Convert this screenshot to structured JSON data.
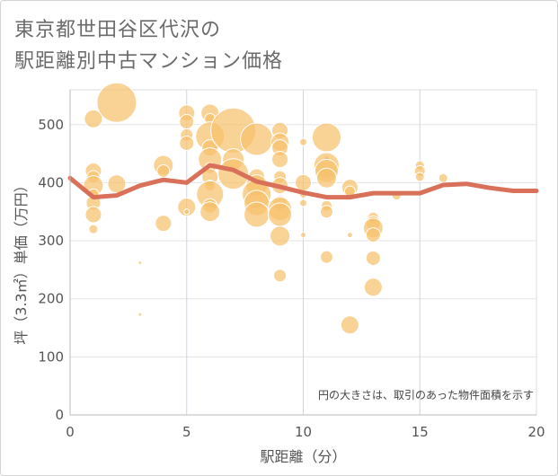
{
  "title": {
    "line1": "東京都世田谷区代沢の",
    "line2": "駅距離別中古マンション価格"
  },
  "chart_data": {
    "type": "scatter",
    "xlabel": "駅距離（分）",
    "ylabel": "坪（3.3㎡）単価（万円）",
    "xlim": [
      0,
      20
    ],
    "ylim": [
      0,
      560
    ],
    "xticks": [
      0,
      5,
      10,
      15,
      20
    ],
    "yticks": [
      0,
      100,
      200,
      300,
      400,
      500
    ],
    "note": "円の大きさは、取引のあった物件面積を示す",
    "bubble_color": "#f6c06c",
    "line_color": "#d9705a",
    "grid": true,
    "bubbles": [
      {
        "x": 1,
        "y": 510,
        "r": 10
      },
      {
        "x": 1,
        "y": 420,
        "r": 9
      },
      {
        "x": 1,
        "y": 410,
        "r": 7
      },
      {
        "x": 1,
        "y": 395,
        "r": 11
      },
      {
        "x": 1,
        "y": 380,
        "r": 6
      },
      {
        "x": 1,
        "y": 365,
        "r": 8
      },
      {
        "x": 1,
        "y": 345,
        "r": 9
      },
      {
        "x": 1,
        "y": 320,
        "r": 5
      },
      {
        "x": 2,
        "y": 538,
        "r": 22
      },
      {
        "x": 2,
        "y": 398,
        "r": 10
      },
      {
        "x": 3,
        "y": 262,
        "r": 2
      },
      {
        "x": 3,
        "y": 173,
        "r": 2
      },
      {
        "x": 4,
        "y": 430,
        "r": 11
      },
      {
        "x": 4,
        "y": 420,
        "r": 7
      },
      {
        "x": 4,
        "y": 330,
        "r": 9
      },
      {
        "x": 5,
        "y": 520,
        "r": 9
      },
      {
        "x": 5,
        "y": 505,
        "r": 8
      },
      {
        "x": 5,
        "y": 482,
        "r": 7
      },
      {
        "x": 5,
        "y": 468,
        "r": 8
      },
      {
        "x": 5,
        "y": 358,
        "r": 10
      },
      {
        "x": 5,
        "y": 350,
        "r": 3
      },
      {
        "x": 6,
        "y": 520,
        "r": 10
      },
      {
        "x": 6,
        "y": 510,
        "r": 6
      },
      {
        "x": 6,
        "y": 480,
        "r": 16
      },
      {
        "x": 6,
        "y": 460,
        "r": 9
      },
      {
        "x": 6,
        "y": 440,
        "r": 13
      },
      {
        "x": 6,
        "y": 425,
        "r": 6
      },
      {
        "x": 6,
        "y": 410,
        "r": 9
      },
      {
        "x": 6,
        "y": 395,
        "r": 6
      },
      {
        "x": 6,
        "y": 380,
        "r": 15
      },
      {
        "x": 6,
        "y": 360,
        "r": 8
      },
      {
        "x": 6,
        "y": 350,
        "r": 11
      },
      {
        "x": 7,
        "y": 490,
        "r": 25
      },
      {
        "x": 7,
        "y": 440,
        "r": 12
      },
      {
        "x": 7,
        "y": 415,
        "r": 17
      },
      {
        "x": 8,
        "y": 475,
        "r": 18
      },
      {
        "x": 8,
        "y": 410,
        "r": 9
      },
      {
        "x": 8,
        "y": 395,
        "r": 12
      },
      {
        "x": 8,
        "y": 380,
        "r": 16
      },
      {
        "x": 8,
        "y": 365,
        "r": 14
      },
      {
        "x": 8,
        "y": 345,
        "r": 14
      },
      {
        "x": 9,
        "y": 490,
        "r": 9
      },
      {
        "x": 9,
        "y": 470,
        "r": 10
      },
      {
        "x": 9,
        "y": 460,
        "r": 9
      },
      {
        "x": 9,
        "y": 440,
        "r": 9
      },
      {
        "x": 9,
        "y": 410,
        "r": 7
      },
      {
        "x": 9,
        "y": 395,
        "r": 9
      },
      {
        "x": 9,
        "y": 365,
        "r": 8
      },
      {
        "x": 9,
        "y": 355,
        "r": 13
      },
      {
        "x": 9,
        "y": 345,
        "r": 13
      },
      {
        "x": 9,
        "y": 308,
        "r": 11
      },
      {
        "x": 9,
        "y": 240,
        "r": 7
      },
      {
        "x": 10,
        "y": 470,
        "r": 4
      },
      {
        "x": 10,
        "y": 400,
        "r": 9
      },
      {
        "x": 10,
        "y": 380,
        "r": 4
      },
      {
        "x": 10,
        "y": 365,
        "r": 4
      },
      {
        "x": 10,
        "y": 310,
        "r": 3
      },
      {
        "x": 11,
        "y": 478,
        "r": 16
      },
      {
        "x": 11,
        "y": 442,
        "r": 3
      },
      {
        "x": 11,
        "y": 430,
        "r": 14
      },
      {
        "x": 11,
        "y": 420,
        "r": 13
      },
      {
        "x": 11,
        "y": 408,
        "r": 11
      },
      {
        "x": 11,
        "y": 360,
        "r": 6
      },
      {
        "x": 11,
        "y": 350,
        "r": 7
      },
      {
        "x": 11,
        "y": 272,
        "r": 7
      },
      {
        "x": 12,
        "y": 392,
        "r": 9
      },
      {
        "x": 12,
        "y": 385,
        "r": 6
      },
      {
        "x": 12,
        "y": 310,
        "r": 3
      },
      {
        "x": 12,
        "y": 155,
        "r": 10
      },
      {
        "x": 13,
        "y": 340,
        "r": 6
      },
      {
        "x": 13,
        "y": 330,
        "r": 8
      },
      {
        "x": 13,
        "y": 322,
        "r": 11
      },
      {
        "x": 13,
        "y": 310,
        "r": 8
      },
      {
        "x": 13,
        "y": 270,
        "r": 8
      },
      {
        "x": 13,
        "y": 220,
        "r": 10
      },
      {
        "x": 14,
        "y": 378,
        "r": 5
      },
      {
        "x": 15,
        "y": 430,
        "r": 5
      },
      {
        "x": 15,
        "y": 420,
        "r": 6
      },
      {
        "x": 15,
        "y": 410,
        "r": 5
      },
      {
        "x": 16,
        "y": 408,
        "r": 5
      }
    ],
    "series": [
      {
        "x": [
          0,
          1,
          2,
          3,
          4,
          5,
          6,
          7,
          8,
          9,
          10,
          11,
          12,
          13,
          14,
          15,
          16,
          17,
          18,
          19,
          20
        ],
        "values": [
          408,
          375,
          378,
          395,
          405,
          400,
          430,
          422,
          402,
          393,
          383,
          375,
          375,
          382,
          382,
          382,
          396,
          398,
          391,
          386,
          386
        ]
      }
    ]
  }
}
